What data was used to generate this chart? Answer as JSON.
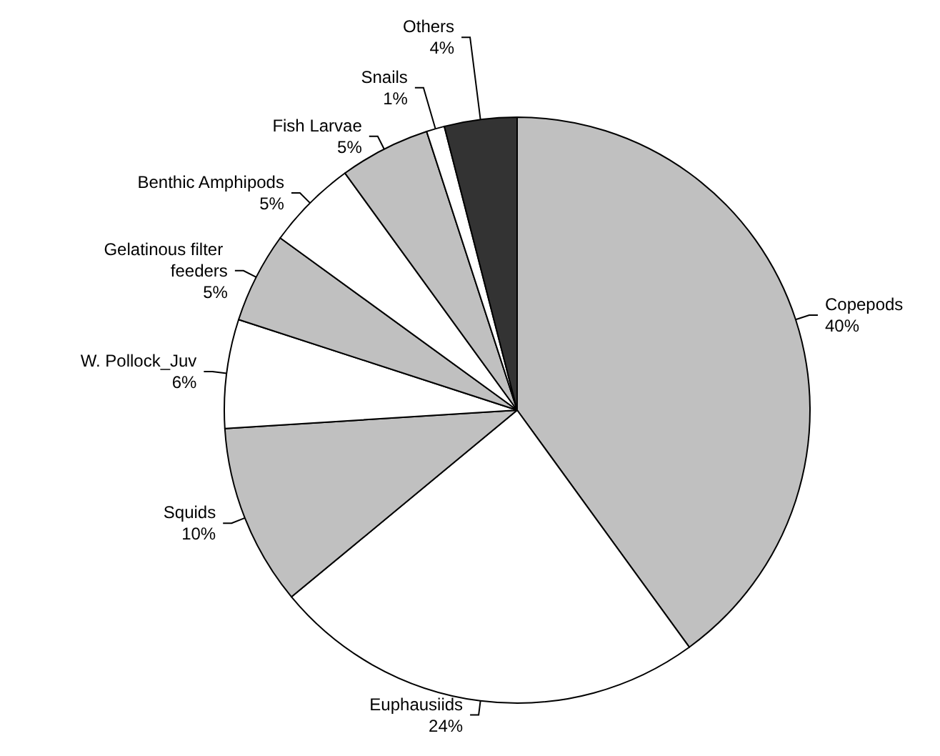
{
  "chart_data": {
    "type": "pie",
    "categories": [
      "Copepods",
      "Euphausiids",
      "Squids",
      "W. Pollock_Juv",
      "Gelatinous filter feeders",
      "Benthic Amphipods",
      "Fish Larvae",
      "Snails",
      "Others"
    ],
    "values": [
      40,
      24,
      10,
      6,
      5,
      5,
      5,
      1,
      4
    ],
    "colors": [
      "#c0c0c0",
      "#ffffff",
      "#c0c0c0",
      "#ffffff",
      "#c0c0c0",
      "#ffffff",
      "#c0c0c0",
      "#ffffff",
      "#333333"
    ],
    "value_labels": [
      "40%",
      "24%",
      "10%",
      "6%",
      "5%",
      "5%",
      "5%",
      "1%",
      "4%"
    ],
    "legend": false
  }
}
